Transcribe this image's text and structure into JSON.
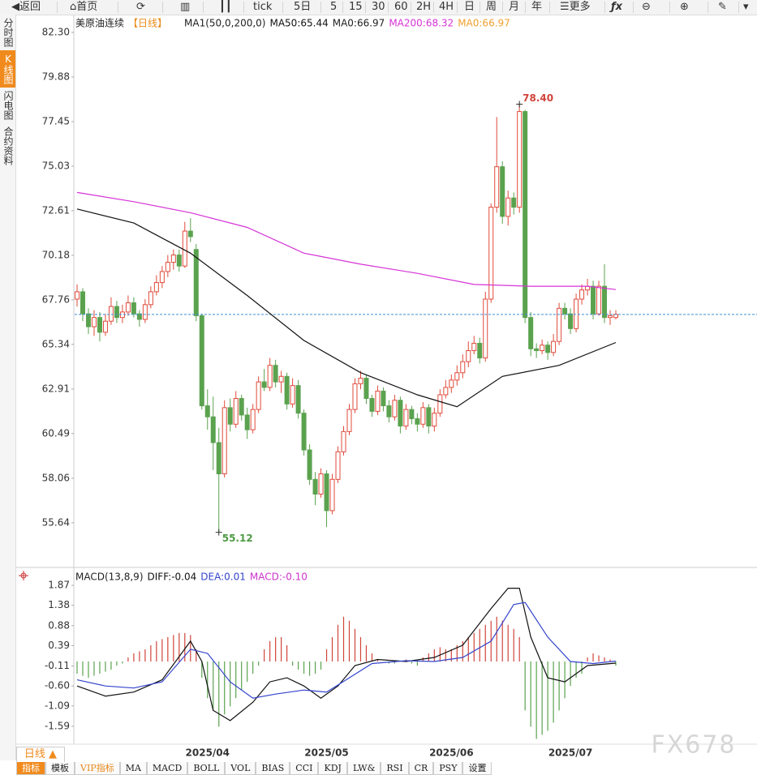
{
  "toolbar": {
    "back": "返回",
    "home": "首页",
    "periods": [
      "tick",
      "5日",
      "5",
      "15",
      "30",
      "60",
      "2H",
      "4H",
      "日",
      "周",
      "月",
      "年"
    ],
    "more": "更多"
  },
  "sidebar": [
    "分时图",
    "K线图",
    "闪电图",
    "合约资料"
  ],
  "period_button": "日线 ▲",
  "bottom_tabs": [
    "指标",
    "模板",
    "VIP指标",
    "MA",
    "MACD",
    "BOLL",
    "VOL",
    "BIAS",
    "CCI",
    "KDJ",
    "LW&",
    "RSI",
    "CR",
    "PSY",
    "设置"
  ],
  "watermark": "FX678",
  "chart_data": [
    {
      "type": "candlestick",
      "title": "美原油连续",
      "period": "【日线】",
      "indicator": "MA1(50,0,200,0)",
      "up_color": "#e04a3a",
      "down_color": "#5ba24f",
      "ohlc": [
        [
          67.8,
          68.6,
          67.4,
          68.2
        ],
        [
          68.2,
          68.4,
          66.6,
          67.0
        ],
        [
          67.0,
          67.3,
          65.9,
          66.3
        ],
        [
          66.3,
          67.2,
          65.8,
          66.8
        ],
        [
          66.8,
          67.1,
          65.5,
          66.0
        ],
        [
          66.0,
          67.0,
          65.8,
          66.6
        ],
        [
          66.6,
          67.9,
          66.4,
          67.4
        ],
        [
          67.4,
          67.7,
          66.5,
          66.8
        ],
        [
          66.8,
          67.5,
          66.5,
          67.1
        ],
        [
          67.1,
          68.0,
          66.9,
          67.6
        ],
        [
          67.6,
          67.9,
          66.8,
          67.0
        ],
        [
          67.0,
          67.2,
          66.3,
          66.7
        ],
        [
          66.7,
          67.8,
          66.5,
          67.5
        ],
        [
          67.5,
          68.5,
          67.3,
          68.2
        ],
        [
          68.2,
          69.1,
          68.0,
          68.7
        ],
        [
          68.7,
          69.6,
          68.4,
          69.3
        ],
        [
          69.3,
          70.2,
          69.0,
          69.8
        ],
        [
          69.8,
          70.5,
          69.4,
          70.2
        ],
        [
          70.2,
          70.5,
          69.3,
          69.6
        ],
        [
          69.6,
          72.0,
          69.5,
          71.5
        ],
        [
          71.5,
          72.2,
          70.9,
          71.2
        ],
        [
          70.5,
          70.8,
          66.6,
          66.9
        ],
        [
          66.9,
          67.0,
          61.8,
          62.0
        ],
        [
          62.0,
          62.9,
          60.7,
          61.4
        ],
        [
          61.4,
          62.5,
          58.5,
          60.0
        ],
        [
          60.0,
          60.8,
          55.12,
          58.3
        ],
        [
          58.3,
          62.3,
          58.1,
          61.9
        ],
        [
          61.9,
          62.4,
          60.6,
          61.0
        ],
        [
          61.0,
          62.8,
          60.8,
          62.4
        ],
        [
          62.4,
          62.6,
          61.2,
          61.5
        ],
        [
          61.5,
          61.9,
          60.2,
          60.7
        ],
        [
          60.7,
          62.1,
          60.5,
          61.8
        ],
        [
          61.8,
          63.6,
          61.6,
          63.3
        ],
        [
          63.3,
          64.0,
          62.8,
          63.0
        ],
        [
          63.0,
          64.6,
          62.8,
          64.2
        ],
        [
          64.2,
          64.5,
          63.0,
          63.3
        ],
        [
          63.3,
          63.9,
          62.7,
          63.6
        ],
        [
          63.6,
          63.8,
          61.8,
          62.1
        ],
        [
          62.1,
          63.5,
          61.9,
          63.1
        ],
        [
          63.1,
          63.4,
          61.3,
          61.6
        ],
        [
          61.6,
          61.8,
          59.3,
          59.6
        ],
        [
          59.6,
          59.9,
          57.7,
          58.0
        ],
        [
          58.0,
          58.4,
          56.6,
          57.2
        ],
        [
          57.2,
          58.6,
          57.0,
          58.3
        ],
        [
          58.3,
          58.5,
          55.4,
          56.3
        ],
        [
          56.3,
          58.3,
          56.1,
          58.0
        ],
        [
          58.0,
          59.8,
          57.8,
          59.5
        ],
        [
          59.5,
          60.9,
          59.3,
          60.6
        ],
        [
          60.6,
          62.1,
          60.4,
          61.8
        ],
        [
          61.8,
          63.5,
          61.6,
          63.2
        ],
        [
          63.2,
          63.9,
          62.9,
          63.5
        ],
        [
          63.5,
          63.7,
          62.1,
          62.4
        ],
        [
          62.4,
          62.6,
          61.4,
          61.7
        ],
        [
          61.7,
          63.1,
          61.5,
          62.8
        ],
        [
          62.8,
          63.0,
          61.7,
          62.0
        ],
        [
          62.0,
          62.3,
          61.1,
          61.4
        ],
        [
          61.4,
          62.6,
          61.2,
          62.3
        ],
        [
          62.3,
          62.5,
          60.5,
          60.9
        ],
        [
          60.9,
          62.1,
          60.7,
          61.8
        ],
        [
          61.8,
          62.0,
          61.0,
          61.3
        ],
        [
          61.3,
          61.6,
          60.6,
          61.0
        ],
        [
          61.0,
          62.2,
          60.8,
          61.9
        ],
        [
          61.9,
          62.1,
          60.5,
          60.9
        ],
        [
          60.9,
          61.9,
          60.6,
          61.6
        ],
        [
          61.6,
          62.9,
          61.4,
          62.6
        ],
        [
          62.6,
          63.4,
          62.4,
          63.0
        ],
        [
          63.0,
          63.7,
          62.7,
          63.4
        ],
        [
          63.4,
          64.2,
          63.1,
          63.8
        ],
        [
          63.8,
          64.8,
          63.5,
          64.4
        ],
        [
          64.4,
          65.5,
          64.1,
          65.0
        ],
        [
          65.0,
          65.8,
          64.8,
          65.4
        ],
        [
          65.4,
          65.7,
          64.3,
          64.6
        ],
        [
          64.6,
          68.2,
          64.4,
          67.8
        ],
        [
          67.8,
          73.0,
          67.6,
          72.8
        ],
        [
          72.8,
          77.7,
          72.5,
          75.0
        ],
        [
          75.0,
          75.3,
          71.9,
          72.3
        ],
        [
          72.3,
          73.7,
          71.8,
          73.3
        ],
        [
          73.3,
          73.6,
          72.4,
          72.8
        ],
        [
          72.8,
          78.4,
          72.5,
          78.0
        ],
        [
          78.0,
          78.1,
          66.5,
          66.8
        ],
        [
          66.8,
          67.1,
          64.7,
          65.1
        ],
        [
          65.1,
          65.4,
          64.6,
          65.0
        ],
        [
          65.0,
          65.6,
          64.8,
          65.3
        ],
        [
          65.3,
          65.5,
          64.5,
          64.9
        ],
        [
          64.9,
          65.9,
          64.7,
          65.5
        ],
        [
          65.5,
          67.6,
          65.3,
          67.3
        ],
        [
          67.3,
          67.6,
          66.7,
          67.0
        ],
        [
          67.0,
          67.3,
          65.9,
          66.2
        ],
        [
          66.2,
          68.1,
          66.0,
          67.8
        ],
        [
          67.8,
          68.6,
          67.5,
          68.3
        ],
        [
          68.3,
          68.9,
          68.0,
          68.5
        ],
        [
          68.5,
          68.8,
          66.7,
          67.0
        ],
        [
          67.0,
          68.8,
          66.9,
          68.5
        ],
        [
          68.5,
          69.7,
          66.5,
          66.8
        ],
        [
          66.8,
          67.2,
          66.4,
          66.9
        ],
        [
          66.8,
          67.2,
          66.7,
          66.97
        ]
      ],
      "series": [
        {
          "name": "MA50:65.44",
          "color": "#111111",
          "x": [
            0,
            10,
            20,
            30,
            40,
            50,
            60,
            67,
            75,
            85,
            95
          ],
          "values": [
            72.7,
            71.94,
            70.3,
            68.0,
            65.55,
            63.8,
            62.6,
            61.95,
            63.6,
            64.2,
            65.44
          ]
        },
        {
          "name": "MA200:68.32",
          "color": "#d633d6",
          "x": [
            0,
            10,
            20,
            30,
            40,
            50,
            60,
            70,
            80,
            90,
            95
          ],
          "values": [
            73.6,
            73.1,
            72.5,
            71.7,
            70.3,
            69.7,
            69.2,
            68.6,
            68.5,
            68.5,
            68.32
          ]
        }
      ],
      "ref_line": {
        "name": "MA0:66.97",
        "value": 66.97,
        "color": "#3d8fd6",
        "legend_color": "#222222"
      },
      "legend_extra": {
        "text": "MA0:66.97",
        "color": "#f0a030"
      },
      "annotations": [
        {
          "index": 78,
          "value": 78.4,
          "label": "78.40",
          "color": "#d0443a"
        },
        {
          "index": 25,
          "value": 55.12,
          "label": "55.12",
          "color": "#4f9a45"
        }
      ],
      "ylim": [
        53.21,
        82.39
      ],
      "yticks": [
        {
          "value": 82.3,
          "label": "82.30"
        },
        {
          "value": 79.88,
          "label": "79.88"
        },
        {
          "value": 77.45,
          "label": "77.45"
        },
        {
          "value": 75.03,
          "label": "75.03"
        },
        {
          "value": 72.61,
          "label": "72.61"
        },
        {
          "value": 70.18,
          "label": "70.18"
        },
        {
          "value": 67.76,
          "label": "67.76"
        },
        {
          "value": 65.34,
          "label": "65.34"
        },
        {
          "value": 62.91,
          "label": "62.91"
        },
        {
          "value": 60.49,
          "label": "60.49"
        },
        {
          "value": 58.06,
          "label": "58.06"
        },
        {
          "value": 55.64,
          "label": "55.64"
        }
      ]
    },
    {
      "type": "macd",
      "title": "MACD(13,8,9)",
      "up_color": "#d0443a",
      "down_color": "#5ba24f",
      "categories": [
        null,
        null,
        null,
        null,
        null,
        null,
        null,
        null,
        null,
        null,
        null,
        null,
        null,
        null,
        null,
        null,
        null,
        null,
        null,
        null,
        null,
        null,
        null,
        "2025/04",
        null,
        null,
        null,
        null,
        null,
        null,
        null,
        null,
        null,
        null,
        null,
        null,
        null,
        null,
        null,
        null,
        null,
        null,
        null,
        null,
        "2025/05",
        null,
        null,
        null,
        null,
        null,
        null,
        null,
        null,
        null,
        null,
        null,
        null,
        null,
        null,
        null,
        null,
        null,
        null,
        null,
        null,
        null,
        "2025/06",
        null,
        null,
        null,
        null,
        null,
        null,
        null,
        null,
        null,
        null,
        null,
        null,
        null,
        null,
        null,
        null,
        null,
        null,
        null,
        null,
        "2025/07",
        null,
        null,
        null,
        null,
        null,
        null,
        null,
        null
      ],
      "histogram": {
        "name": "MACD:-0.10",
        "legend_color": "#cc33cc",
        "values": [
          -0.3,
          -0.35,
          -0.4,
          -0.35,
          -0.3,
          -0.25,
          -0.2,
          -0.1,
          -0.05,
          0.1,
          0.2,
          0.25,
          0.3,
          0.4,
          0.5,
          0.55,
          0.6,
          0.65,
          0.7,
          0.7,
          0.65,
          0.3,
          -0.4,
          -0.9,
          -1.2,
          -1.6,
          -1.3,
          -1.1,
          -0.9,
          -0.7,
          -0.5,
          -0.3,
          -0.1,
          0.3,
          0.5,
          0.6,
          0.6,
          0.4,
          -0.1,
          -0.2,
          -0.3,
          -0.35,
          -0.3,
          -0.2,
          0.3,
          0.6,
          0.9,
          1.1,
          1.0,
          0.8,
          0.6,
          0.4,
          0.2,
          0.05,
          0.0,
          -0.05,
          -0.05,
          0.0,
          0.05,
          -0.05,
          -0.1,
          0.1,
          0.2,
          0.3,
          0.35,
          0.3,
          0.3,
          0.4,
          0.5,
          0.6,
          0.7,
          0.8,
          0.9,
          1.0,
          1.1,
          1.0,
          0.9,
          0.8,
          0.6,
          -1.2,
          -1.6,
          -1.9,
          -1.8,
          -1.7,
          -1.5,
          -1.2,
          -0.9,
          -0.6,
          -0.4,
          -0.3,
          0.1,
          0.2,
          0.15,
          0.1,
          0.05,
          -0.1
        ]
      },
      "series": [
        {
          "name": "DIFF:-0.04",
          "color": "#111111",
          "x": [
            0,
            5,
            10,
            15,
            20,
            22,
            24,
            27,
            31,
            34,
            37,
            40,
            43,
            46,
            49,
            53,
            58,
            63,
            68,
            73,
            76,
            78,
            80,
            83,
            86,
            90,
            95
          ],
          "values": [
            -0.6,
            -0.85,
            -0.75,
            -0.45,
            0.5,
            0.0,
            -1.2,
            -1.45,
            -1.0,
            -0.5,
            -0.4,
            -0.6,
            -0.9,
            -0.6,
            -0.1,
            0.05,
            0.0,
            0.1,
            0.4,
            1.3,
            1.8,
            1.8,
            0.6,
            -0.4,
            -0.5,
            -0.1,
            -0.04
          ]
        },
        {
          "name": "DEA:0.01",
          "color": "#3344cc",
          "x": [
            0,
            5,
            10,
            15,
            20,
            23,
            27,
            31,
            35,
            40,
            44,
            48,
            52,
            58,
            63,
            68,
            73,
            77,
            79,
            83,
            87,
            91,
            95
          ],
          "values": [
            -0.45,
            -0.6,
            -0.65,
            -0.5,
            0.3,
            0.2,
            -0.5,
            -0.9,
            -0.8,
            -0.7,
            -0.75,
            -0.4,
            -0.05,
            0.02,
            0.0,
            0.1,
            0.5,
            1.4,
            1.45,
            0.6,
            0.0,
            -0.05,
            0.01
          ]
        }
      ],
      "ylim": [
        -2.03,
        2.07
      ],
      "yticks": [
        {
          "value": 1.87,
          "label": "1.87"
        },
        {
          "value": 1.38,
          "label": "1.38"
        },
        {
          "value": 0.88,
          "label": "0.88"
        },
        {
          "value": 0.39,
          "label": "0.39"
        },
        {
          "value": -0.11,
          "label": "-0.11"
        },
        {
          "value": -0.6,
          "label": "-0.60"
        },
        {
          "value": -1.09,
          "label": "-1.09"
        },
        {
          "value": -1.59,
          "label": "-1.59"
        }
      ]
    }
  ]
}
